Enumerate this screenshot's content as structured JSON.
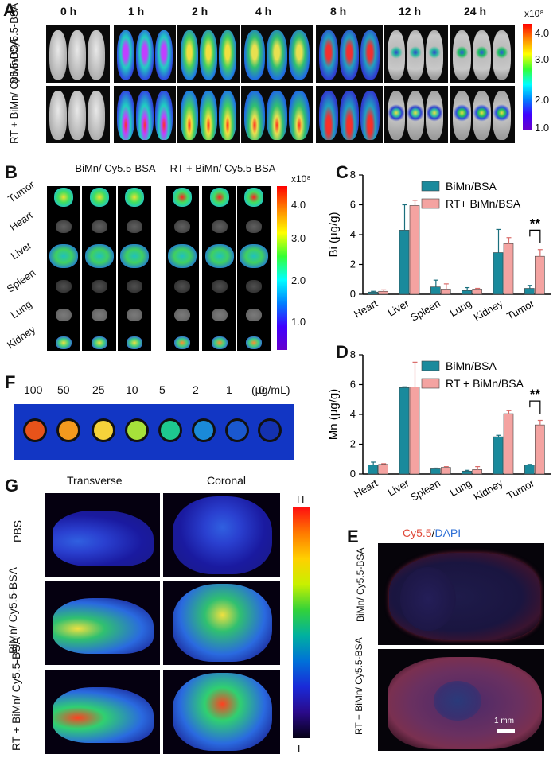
{
  "panelA": {
    "letter": "A",
    "times": [
      "0 h",
      "1 h",
      "2 h",
      "4 h",
      "8 h",
      "12 h",
      "24 h"
    ],
    "rows": [
      "BiMn/ Cy5.5-BSA",
      "RT + BiMn/ Cy5.5-BSA"
    ],
    "scale_exp": "x10⁸",
    "scale_ticks": [
      "4.0",
      "3.0",
      "2.0",
      "1.0"
    ]
  },
  "panelB": {
    "letter": "B",
    "groups": [
      "BiMn/ Cy5.5-BSA",
      "RT + BiMn/ Cy5.5-BSA"
    ],
    "organs": [
      "Tumor",
      "Heart",
      "Liver",
      "Spleen",
      "Lung",
      "Kidney"
    ],
    "scale_exp": "x10⁸",
    "scale_ticks": [
      "4.0",
      "3.0",
      "2.0",
      "1.0"
    ]
  },
  "panelF": {
    "letter": "F",
    "concentrations": [
      "100",
      "50",
      "25",
      "10",
      "5",
      "2",
      "1",
      "0"
    ],
    "unit": "(μg/mL)",
    "well_colors": [
      "#e8531a",
      "#f39a1e",
      "#f5d23a",
      "#a6e23a",
      "#1ec88f",
      "#1a8ad9",
      "#1a58cf",
      "#1432b0"
    ]
  },
  "panelG": {
    "letter": "G",
    "columns": [
      "Transverse",
      "Coronal"
    ],
    "rows": [
      "PBS",
      "BiMn/ Cy5.5-BSA",
      "RT + BiMn/ Cy5.5-BSA"
    ],
    "scale_high": "H",
    "scale_low": "L"
  },
  "panelE": {
    "letter": "E",
    "title_red": "Cy5.5",
    "title_sep": "/",
    "title_blue": "DAPI",
    "rows": [
      "BiMn/ Cy5.5-BSA",
      "RT + BiMn/ Cy5.5-BSA"
    ],
    "scale_bar": "1 mm"
  },
  "colors": {
    "series1": "#1a8a9c",
    "series2": "#f4a3a1"
  },
  "chart_data": [
    {
      "panel": "C",
      "type": "bar",
      "categories": [
        "Heart",
        "Liver",
        "Spleen",
        "Lung",
        "Kidney",
        "Tumor"
      ],
      "series": [
        {
          "name": "BiMn/BSA",
          "values": [
            0.15,
            4.3,
            0.5,
            0.25,
            2.8,
            0.4
          ],
          "errors": [
            0.05,
            1.7,
            0.45,
            0.2,
            1.55,
            0.2
          ]
        },
        {
          "name": "RT+ BiMn/BSA",
          "values": [
            0.2,
            5.95,
            0.35,
            0.35,
            3.4,
            2.55
          ],
          "errors": [
            0.1,
            0.35,
            0.35,
            0.05,
            0.4,
            0.45
          ]
        }
      ],
      "ylabel": "Bi (μg/g)",
      "ylim": [
        0,
        8
      ],
      "yticks": [
        "0",
        "2",
        "4",
        "6",
        "8"
      ],
      "annotation": "**",
      "legend": "top-right"
    },
    {
      "panel": "D",
      "type": "bar",
      "categories": [
        "Heart",
        "Liver",
        "Spleen",
        "Lung",
        "Kidney",
        "Tumor"
      ],
      "series": [
        {
          "name": "BiMn/BSA",
          "values": [
            0.6,
            5.8,
            0.35,
            0.2,
            2.5,
            0.6
          ],
          "errors": [
            0.2,
            0.05,
            0.05,
            0.05,
            0.1,
            0.05
          ]
        },
        {
          "name": "RT + BiMn/BSA",
          "values": [
            0.65,
            5.85,
            0.45,
            0.3,
            4.05,
            3.3
          ],
          "errors": [
            0.05,
            1.65,
            0.05,
            0.2,
            0.2,
            0.3
          ]
        }
      ],
      "ylabel": "Mn (μg/g)",
      "ylim": [
        0,
        8
      ],
      "yticks": [
        "0",
        "2",
        "4",
        "6",
        "8"
      ],
      "annotation": "**",
      "legend": "top-right"
    }
  ]
}
